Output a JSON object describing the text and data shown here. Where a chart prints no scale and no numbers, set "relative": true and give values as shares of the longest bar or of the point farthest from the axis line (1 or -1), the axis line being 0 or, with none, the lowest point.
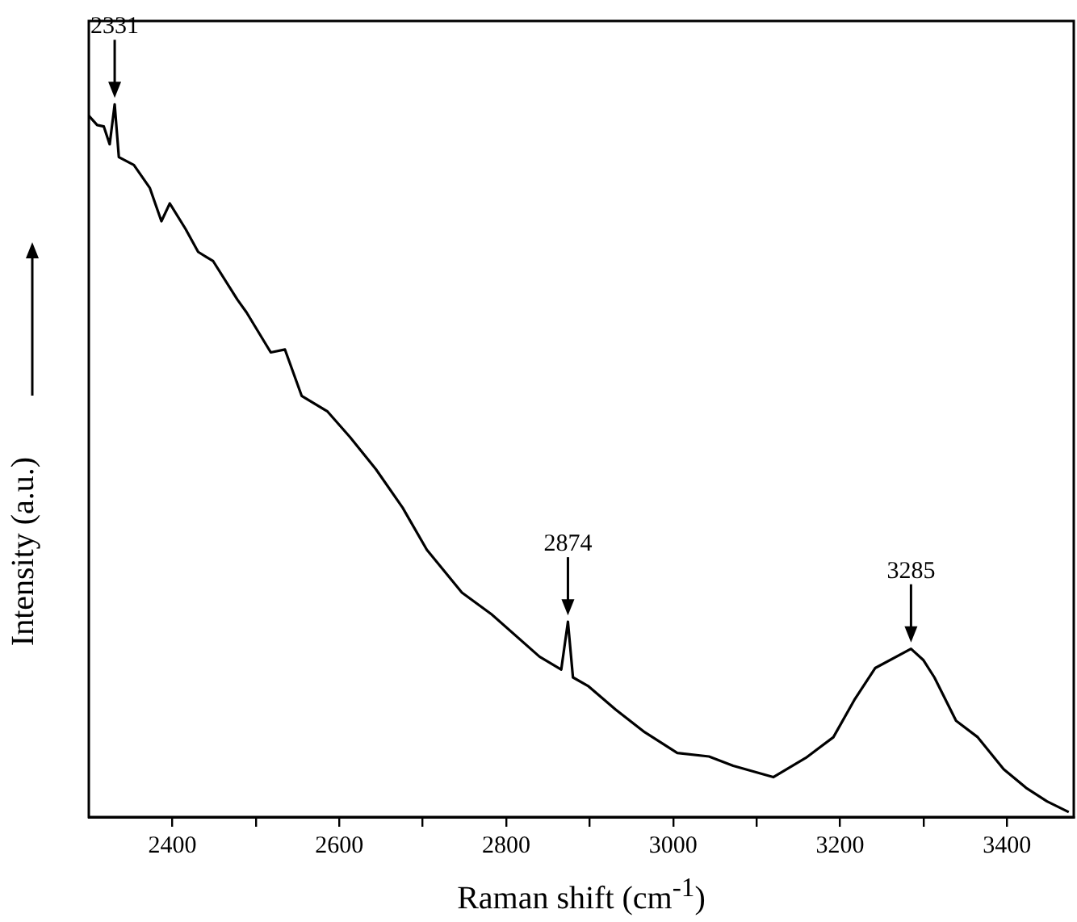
{
  "chart_data": {
    "type": "line",
    "relative": true,
    "xlabel": "Raman shift (cm$^{-1}$)",
    "ylabel": "Intensity (a.u.)",
    "xlim": [
      2300,
      3480
    ],
    "xticks": [
      2400,
      {
        "value": 2500,
        "label": null
      },
      2600,
      {
        "value": 2700,
        "label": null
      },
      2800,
      {
        "value": 2900,
        "label": null
      },
      3000,
      {
        "value": 3100,
        "label": null
      },
      3200,
      {
        "value": 3300,
        "label": null
      },
      3400
    ],
    "grid": false,
    "legend": false,
    "marker": "none",
    "line_style": "solid",
    "annotations": [
      {
        "text": "2331",
        "x": 2331,
        "y": 1
      },
      {
        "text": "2874",
        "x": 2874,
        "y": 0.274
      },
      {
        "text": "3285",
        "x": 3285,
        "y": 0.236
      }
    ],
    "series": [
      {
        "color": "#000000",
        "x": [
          2300,
          2310,
          2318,
          2325,
          2331,
          2336,
          2354,
          2373,
          2387,
          2397,
          2416,
          2431,
          2449,
          2478,
          2489,
          2518,
          2535,
          2555,
          2586,
          2613,
          2644,
          2676,
          2705,
          2747,
          2782,
          2840,
          2866,
          2874,
          2880,
          2898,
          2931,
          2966,
          3005,
          3043,
          3072,
          3120,
          3159,
          3192,
          3217,
          3242,
          3285,
          3300,
          3313,
          3339,
          3365,
          3396,
          3424,
          3448,
          3474
        ],
        "values": [
          0.984,
          0.971,
          0.969,
          0.944,
          1,
          0.926,
          0.915,
          0.883,
          0.836,
          0.861,
          0.825,
          0.793,
          0.78,
          0.726,
          0.708,
          0.652,
          0.656,
          0.591,
          0.569,
          0.533,
          0.488,
          0.434,
          0.375,
          0.315,
          0.285,
          0.225,
          0.207,
          0.274,
          0.196,
          0.184,
          0.151,
          0.119,
          0.09,
          0.085,
          0.072,
          0.056,
          0.083,
          0.112,
          0.164,
          0.209,
          0.236,
          0.22,
          0.196,
          0.135,
          0.112,
          0.067,
          0.04,
          0.022,
          0.007
        ]
      }
    ]
  }
}
